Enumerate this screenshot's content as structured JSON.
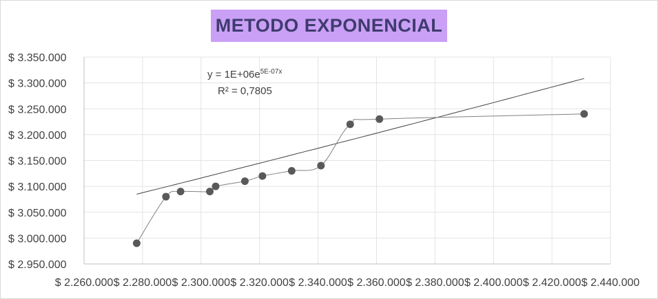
{
  "chart_data": {
    "type": "scatter",
    "title": "METODO EXPONENCIAL",
    "x_tick_labels": [
      "$ 2.260.000",
      "$ 2.280.000",
      "$ 2.300.000",
      "$ 2.320.000",
      "$ 2.340.000",
      "$ 2.360.000",
      "$ 2.380.000",
      "$ 2.400.000",
      "$ 2.420.000",
      "$ 2.440.000"
    ],
    "y_tick_labels": [
      "$ 3.350.000",
      "$ 3.300.000",
      "$ 3.250.000",
      "$ 3.200.000",
      "$ 3.150.000",
      "$ 3.100.000",
      "$ 3.050.000",
      "$ 3.000.000",
      "$ 2.950.000"
    ],
    "xlim": [
      2260000,
      2440000
    ],
    "ylim": [
      2950000,
      3350000
    ],
    "x_ticks": [
      2260000,
      2280000,
      2300000,
      2320000,
      2340000,
      2360000,
      2380000,
      2400000,
      2420000,
      2440000
    ],
    "y_ticks": [
      2950000,
      3000000,
      3050000,
      3100000,
      3150000,
      3200000,
      3250000,
      3300000,
      3350000
    ],
    "grid": true,
    "series": [
      {
        "x": [
          2278000,
          2288000,
          2293000,
          2303000,
          2305000,
          2315000,
          2321000,
          2331000,
          2341000,
          2351000,
          2361000,
          2431000
        ],
        "y": [
          2990000,
          3080000,
          3090000,
          3090000,
          3100000,
          3110000,
          3120000,
          3130000,
          3140000,
          3220000,
          3230000,
          3240000
        ],
        "color": "#595959",
        "smoothed_line": true
      }
    ],
    "trendline": {
      "type": "exponential",
      "x_range": [
        2278000,
        2431000
      ],
      "a": 1088000.0,
      "b": 4.575e-07,
      "color": "#404040",
      "equation_base": "y = 1E+06e",
      "equation_exponent": "5E-07x",
      "r_squared_label": "R² = 0,7805"
    }
  }
}
